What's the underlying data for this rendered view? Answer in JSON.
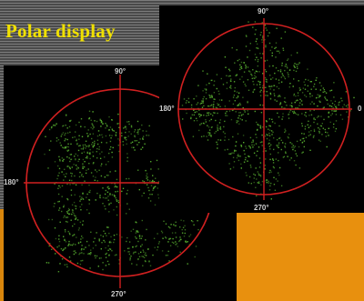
{
  "slide": {
    "title": "Polar display"
  },
  "scopes": [
    {
      "label_top": "90°",
      "label_left": "180°",
      "label_bottom": "270°"
    },
    {
      "label_top": "90°",
      "label_left": "180°",
      "label_bottom": "270°",
      "label_right": "0"
    }
  ],
  "colors": {
    "title": "#f0e000",
    "background_accent": "#d8860c",
    "trace": "#ff3030",
    "dots": "#58b030"
  }
}
